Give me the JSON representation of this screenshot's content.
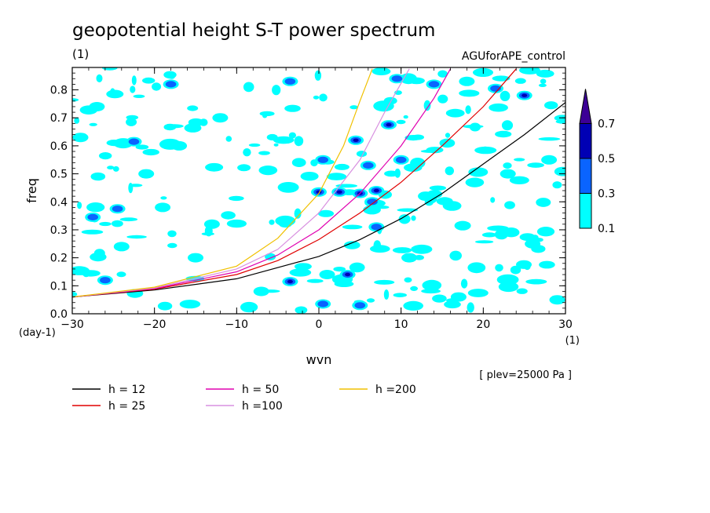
{
  "chart_data": {
    "type": "heatmap",
    "title": "geopotential height S-T power spectrum",
    "subtitle_left": "(1)",
    "subtitle_right": "AGUforAPE_control",
    "xlabel": "wvn",
    "ylabel": "freq",
    "x_unit": "(1)",
    "y_unit": "(day-1)",
    "xlim": [
      -30,
      30
    ],
    "ylim": [
      0,
      0.88
    ],
    "x_ticks": [
      -30,
      -20,
      -10,
      0,
      10,
      20,
      30
    ],
    "y_ticks": [
      0.0,
      0.1,
      0.2,
      0.3,
      0.4,
      0.5,
      0.6,
      0.7,
      0.8
    ],
    "note": "[ plev=25000 Pa ]",
    "colorbar": {
      "levels": [
        0.1,
        0.3,
        0.5,
        0.7
      ],
      "colors": [
        "#00ffff",
        "#0a64ff",
        "#0000b4",
        "#3c0096"
      ]
    },
    "series": [
      {
        "name": "h = 12",
        "h": 12,
        "color": "#000000",
        "x": [
          -30,
          -20,
          -10,
          0,
          5,
          10,
          15,
          20,
          25,
          30
        ],
        "y": [
          0.06,
          0.085,
          0.125,
          0.205,
          0.265,
          0.34,
          0.43,
          0.535,
          0.64,
          0.755
        ]
      },
      {
        "name": "h = 25",
        "h": 25,
        "color": "#e00000",
        "x": [
          -30,
          -20,
          -10,
          -5,
          0,
          5,
          10,
          15,
          20,
          24
        ],
        "y": [
          0.06,
          0.088,
          0.14,
          0.19,
          0.265,
          0.36,
          0.47,
          0.6,
          0.74,
          0.875
        ]
      },
      {
        "name": "h = 50",
        "h": 50,
        "color": "#e000b0",
        "x": [
          -30,
          -20,
          -10,
          -5,
          0,
          5,
          10,
          14,
          16
        ],
        "y": [
          0.06,
          0.09,
          0.15,
          0.21,
          0.3,
          0.43,
          0.6,
          0.77,
          0.875
        ]
      },
      {
        "name": "h =100",
        "h": 100,
        "color": "#d890e0",
        "x": [
          -30,
          -20,
          -10,
          -5,
          0,
          5,
          8,
          11
        ],
        "y": [
          0.06,
          0.092,
          0.16,
          0.23,
          0.36,
          0.55,
          0.72,
          0.875
        ]
      },
      {
        "name": "h =200",
        "h": 200,
        "color": "#f0c000",
        "x": [
          -30,
          -20,
          -10,
          -5,
          0,
          3,
          5,
          6.5
        ],
        "y": [
          0.06,
          0.095,
          0.17,
          0.27,
          0.43,
          0.6,
          0.76,
          0.875
        ]
      }
    ],
    "features": [
      {
        "x": -27.5,
        "y": 0.345,
        "level": 0.3
      },
      {
        "x": -24.5,
        "y": 0.375,
        "level": 0.3
      },
      {
        "x": -22.5,
        "y": 0.615,
        "level": 0.3
      },
      {
        "x": -21,
        "y": 0.5,
        "level": 0.1
      },
      {
        "x": -19,
        "y": 0.38,
        "level": 0.1
      },
      {
        "x": -17,
        "y": 0.6,
        "level": 0.1
      },
      {
        "x": -18,
        "y": 0.82,
        "level": 0.3
      },
      {
        "x": -26,
        "y": 0.12,
        "level": 0.3
      },
      {
        "x": -29,
        "y": 0.63,
        "level": 0.1
      },
      {
        "x": -27,
        "y": 0.74,
        "level": 0.1
      },
      {
        "x": -24,
        "y": 0.24,
        "level": 0.1
      },
      {
        "x": -15,
        "y": 0.2,
        "level": 0.1
      },
      {
        "x": -13,
        "y": 0.32,
        "level": 0.1
      },
      {
        "x": -12,
        "y": 0.7,
        "level": 0.1
      },
      {
        "x": -7,
        "y": 0.08,
        "level": 0.1
      },
      {
        "x": -3.5,
        "y": 0.115,
        "level": 0.5
      },
      {
        "x": -3.5,
        "y": 0.83,
        "level": 0.3
      },
      {
        "x": 0,
        "y": 0.435,
        "level": 0.5
      },
      {
        "x": 0.5,
        "y": 0.55,
        "level": 0.3
      },
      {
        "x": 0.5,
        "y": 0.035,
        "level": 0.3
      },
      {
        "x": 1,
        "y": 0.14,
        "level": 0.1
      },
      {
        "x": 2.5,
        "y": 0.435,
        "level": 0.5
      },
      {
        "x": 3.5,
        "y": 0.14,
        "level": 0.5
      },
      {
        "x": 4.5,
        "y": 0.62,
        "level": 0.5
      },
      {
        "x": 5,
        "y": 0.43,
        "level": 0.5
      },
      {
        "x": 5,
        "y": 0.03,
        "level": 0.3
      },
      {
        "x": 6,
        "y": 0.53,
        "level": 0.3
      },
      {
        "x": 6.5,
        "y": 0.4,
        "level": 0.3
      },
      {
        "x": 7,
        "y": 0.44,
        "level": 0.5
      },
      {
        "x": 7,
        "y": 0.31,
        "level": 0.3
      },
      {
        "x": 8.5,
        "y": 0.675,
        "level": 0.5
      },
      {
        "x": 9.5,
        "y": 0.84,
        "level": 0.3
      },
      {
        "x": 10,
        "y": 0.55,
        "level": 0.3
      },
      {
        "x": 11,
        "y": 0.2,
        "level": 0.1
      },
      {
        "x": 13,
        "y": 0.42,
        "level": 0.1
      },
      {
        "x": 14,
        "y": 0.82,
        "level": 0.3
      },
      {
        "x": 17,
        "y": 0.06,
        "level": 0.1
      },
      {
        "x": 18,
        "y": 0.83,
        "level": 0.1
      },
      {
        "x": 21.5,
        "y": 0.805,
        "level": 0.3
      },
      {
        "x": 23,
        "y": 0.5,
        "level": 0.1
      },
      {
        "x": 25,
        "y": 0.78,
        "level": 0.5
      },
      {
        "x": 26,
        "y": 0.25,
        "level": 0.1
      },
      {
        "x": 28,
        "y": 0.55,
        "level": 0.1
      },
      {
        "x": 29,
        "y": 0.05,
        "level": 0.1
      }
    ]
  }
}
